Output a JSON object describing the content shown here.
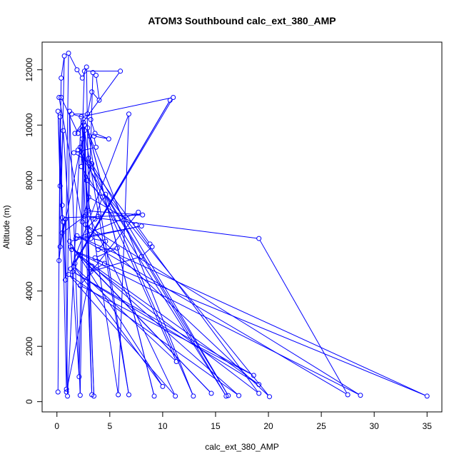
{
  "chart_data": {
    "type": "line",
    "title": "ATOM3 Southbound calc_ext_380_AMP",
    "xlabel": "calc_ext_380_AMP",
    "ylabel": "Altitude (m)",
    "xlim": [
      -1.4,
      36.4
    ],
    "ylim": [
      -370,
      13000
    ],
    "xticks": [
      0,
      5,
      10,
      15,
      20,
      25,
      30,
      35
    ],
    "yticks": [
      0,
      2000,
      4000,
      6000,
      8000,
      10000,
      12000
    ],
    "grid": false,
    "legend": "none",
    "marker": "open circle",
    "color": "#0000ff",
    "series": [
      {
        "values": [
          {
            "x": 0.1,
            "y": 350
          },
          {
            "x": 0.3,
            "y": 10300
          },
          {
            "x": 0.5,
            "y": 7100
          },
          {
            "x": 0.9,
            "y": 450
          },
          {
            "x": 1.2,
            "y": 10500
          },
          {
            "x": 2.2,
            "y": 230
          },
          {
            "x": 2.6,
            "y": 9800
          },
          {
            "x": 6.8,
            "y": 250
          },
          {
            "x": 2.9,
            "y": 9900
          },
          {
            "x": 9.2,
            "y": 200
          },
          {
            "x": 3.1,
            "y": 9600
          },
          {
            "x": 12.9,
            "y": 200
          },
          {
            "x": 3.0,
            "y": 8800
          },
          {
            "x": 16.2,
            "y": 220
          },
          {
            "x": 4.6,
            "y": 7500
          },
          {
            "x": 20.1,
            "y": 180
          },
          {
            "x": 2.7,
            "y": 6400
          },
          {
            "x": 28.7,
            "y": 230
          },
          {
            "x": 1.4,
            "y": 5500
          },
          {
            "x": 35.0,
            "y": 200
          },
          {
            "x": 1.9,
            "y": 6000
          },
          {
            "x": 27.5,
            "y": 250
          },
          {
            "x": 19.1,
            "y": 5900
          },
          {
            "x": 2.6,
            "y": 6700
          },
          {
            "x": 0.5,
            "y": 6100
          },
          {
            "x": 0.8,
            "y": 6600
          },
          {
            "x": 1.0,
            "y": 200
          },
          {
            "x": 2.3,
            "y": 10300
          },
          {
            "x": 11.0,
            "y": 11000
          },
          {
            "x": 1.7,
            "y": 5000
          },
          {
            "x": 10.7,
            "y": 10900
          },
          {
            "x": 1.3,
            "y": 4800
          },
          {
            "x": 6.8,
            "y": 10400
          },
          {
            "x": 5.8,
            "y": 250
          },
          {
            "x": 2.2,
            "y": 9200
          },
          {
            "x": 11.3,
            "y": 1450
          },
          {
            "x": 1.6,
            "y": 4900
          },
          {
            "x": 10.0,
            "y": 550
          },
          {
            "x": 1.2,
            "y": 5800
          },
          {
            "x": 8.0,
            "y": 6350
          },
          {
            "x": 1.8,
            "y": 5900
          },
          {
            "x": 7.7,
            "y": 6850
          },
          {
            "x": 2.2,
            "y": 4200
          },
          {
            "x": 18.6,
            "y": 950
          },
          {
            "x": 1.5,
            "y": 4700
          },
          {
            "x": 19.1,
            "y": 620
          },
          {
            "x": 2.1,
            "y": 5300
          },
          {
            "x": 14.6,
            "y": 300
          },
          {
            "x": 1.3,
            "y": 5600
          },
          {
            "x": 17.2,
            "y": 220
          },
          {
            "x": 1.1,
            "y": 4600
          },
          {
            "x": 11.2,
            "y": 200
          },
          {
            "x": 2.8,
            "y": 6900
          },
          {
            "x": 8.1,
            "y": 6750
          },
          {
            "x": 0.5,
            "y": 6650
          },
          {
            "x": 0.1,
            "y": 10500
          },
          {
            "x": 0.3,
            "y": 7800
          },
          {
            "x": 0.6,
            "y": 9800
          },
          {
            "x": 2.1,
            "y": 900
          },
          {
            "x": 2.5,
            "y": 10100
          },
          {
            "x": 3.5,
            "y": 200
          },
          {
            "x": 2.6,
            "y": 10000
          },
          {
            "x": 3.3,
            "y": 250
          },
          {
            "x": 2.4,
            "y": 9500
          },
          {
            "x": 0.3,
            "y": 5600
          },
          {
            "x": 0.7,
            "y": 12500
          },
          {
            "x": 0.4,
            "y": 11700
          },
          {
            "x": 0.2,
            "y": 5100
          },
          {
            "x": 0.6,
            "y": 6500
          },
          {
            "x": 0.8,
            "y": 4400
          },
          {
            "x": 1.1,
            "y": 12600
          },
          {
            "x": 1.9,
            "y": 12000
          },
          {
            "x": 2.4,
            "y": 11700
          },
          {
            "x": 2.8,
            "y": 12100
          },
          {
            "x": 3.0,
            "y": 6900
          },
          {
            "x": 3.4,
            "y": 11900
          },
          {
            "x": 3.7,
            "y": 11800
          },
          {
            "x": 4.0,
            "y": 10900
          },
          {
            "x": 3.3,
            "y": 11200
          },
          {
            "x": 2.9,
            "y": 10400
          },
          {
            "x": 1.4,
            "y": 10400
          },
          {
            "x": 3.2,
            "y": 10200
          },
          {
            "x": 3.6,
            "y": 9700
          },
          {
            "x": 4.9,
            "y": 9500
          },
          {
            "x": 3.5,
            "y": 9600
          },
          {
            "x": 3.7,
            "y": 9200
          },
          {
            "x": 1.6,
            "y": 9000
          },
          {
            "x": 3.3,
            "y": 8600
          },
          {
            "x": 2.8,
            "y": 8000
          },
          {
            "x": 4.3,
            "y": 7400
          },
          {
            "x": 3.6,
            "y": 6600
          },
          {
            "x": 3.9,
            "y": 6700
          },
          {
            "x": 2.9,
            "y": 6300
          },
          {
            "x": 3.2,
            "y": 5900
          },
          {
            "x": 4.6,
            "y": 5800
          },
          {
            "x": 3.9,
            "y": 5500
          },
          {
            "x": 5.7,
            "y": 5550
          },
          {
            "x": 3.6,
            "y": 5200
          },
          {
            "x": 4.5,
            "y": 5000
          },
          {
            "x": 3.2,
            "y": 4700
          },
          {
            "x": 8.0,
            "y": 5250
          },
          {
            "x": 9.0,
            "y": 5600
          },
          {
            "x": 8.8,
            "y": 5700
          },
          {
            "x": 7.5,
            "y": 6400
          },
          {
            "x": 3.0,
            "y": 7400
          },
          {
            "x": 2.4,
            "y": 6500
          },
          {
            "x": 0.2,
            "y": 11000
          },
          {
            "x": 0.4,
            "y": 11000
          },
          {
            "x": 2.0,
            "y": 9700
          },
          {
            "x": 2.6,
            "y": 10000
          },
          {
            "x": 1.7,
            "y": 9700
          },
          {
            "x": 6.0,
            "y": 11950
          },
          {
            "x": 2.6,
            "y": 11950
          },
          {
            "x": 2.3,
            "y": 8500
          },
          {
            "x": 16.0,
            "y": 200
          },
          {
            "x": 2.0,
            "y": 9100
          },
          {
            "x": 19.1,
            "y": 300
          },
          {
            "x": 3.3,
            "y": 4900
          },
          {
            "x": 0.9,
            "y": 350
          }
        ]
      }
    ]
  }
}
